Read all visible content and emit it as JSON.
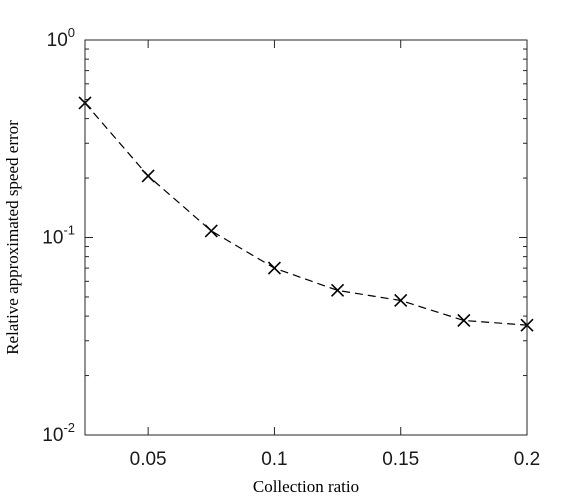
{
  "chart_data": {
    "type": "line",
    "title": "",
    "xlabel": "Collection ratio",
    "ylabel": "Relative approximated speed error",
    "xlim": [
      0.025,
      0.2
    ],
    "ylim": [
      0.01,
      1
    ],
    "yscale": "log",
    "grid": false,
    "legend": "none",
    "x_ticks": [
      "0.05",
      "0.1",
      "0.15",
      "0.2"
    ],
    "x_tick_values": [
      0.05,
      0.1,
      0.15,
      0.2
    ],
    "y_ticks": [
      {
        "value": 1,
        "base": "10",
        "exp": "0"
      },
      {
        "value": 0.1,
        "base": "10",
        "exp": "-1"
      },
      {
        "value": 0.01,
        "base": "10",
        "exp": "-2"
      }
    ],
    "series": [
      {
        "line_style": "dashed",
        "marker": "x",
        "color": "#000000",
        "x": [
          0.025,
          0.05,
          0.075,
          0.1,
          0.125,
          0.15,
          0.175,
          0.2
        ],
        "y": [
          0.48,
          0.205,
          0.108,
          0.07,
          0.054,
          0.048,
          0.038,
          0.036
        ]
      }
    ]
  }
}
